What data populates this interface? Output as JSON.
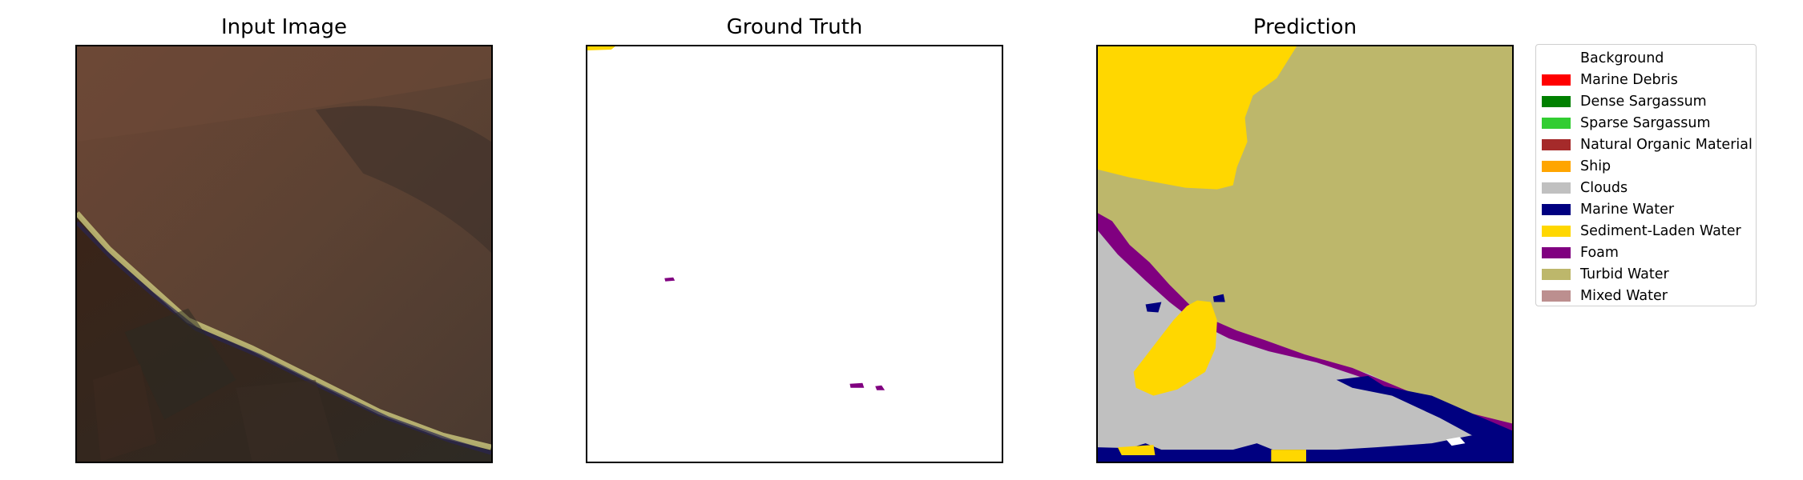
{
  "panels": {
    "input": {
      "title": "Input Image"
    },
    "ground_truth": {
      "title": "Ground Truth"
    },
    "prediction": {
      "title": "Prediction"
    }
  },
  "legend": [
    {
      "label": "Background",
      "color": "#ffffff"
    },
    {
      "label": "Marine Debris",
      "color": "#ff0000"
    },
    {
      "label": "Dense Sargassum",
      "color": "#008000"
    },
    {
      "label": "Sparse Sargassum",
      "color": "#32cd32"
    },
    {
      "label": "Natural Organic Material",
      "color": "#a52a2a"
    },
    {
      "label": "Ship",
      "color": "#ffa500"
    },
    {
      "label": "Clouds",
      "color": "#c0c0c0"
    },
    {
      "label": "Marine Water",
      "color": "#000080"
    },
    {
      "label": "Sediment-Laden Water",
      "color": "#ffd700"
    },
    {
      "label": "Foam",
      "color": "#800080"
    },
    {
      "label": "Turbid Water",
      "color": "#bdb76b"
    },
    {
      "label": "Mixed Water",
      "color": "#bc8f8f"
    }
  ]
}
